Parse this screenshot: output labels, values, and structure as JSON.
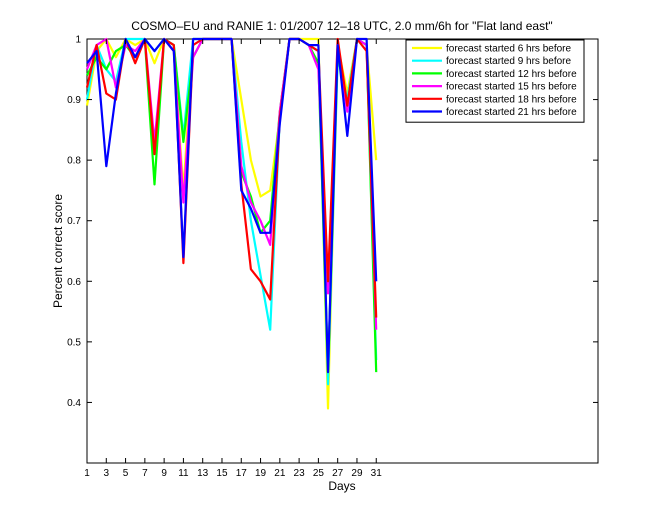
{
  "chart_data": {
    "type": "line",
    "title": "COSMO–EU and RANIE 1: 01/2007 12–18 UTC, 2.0 mm/6h for \"Flat land east\"",
    "xlabel": "Days",
    "ylabel": "Percent correct score",
    "xlim": [
      1,
      54
    ],
    "ylim": [
      0.3,
      1.0
    ],
    "xticks": [
      1,
      3,
      5,
      7,
      9,
      11,
      13,
      15,
      17,
      19,
      21,
      23,
      25,
      27,
      29,
      31
    ],
    "yticks": [
      0.4,
      0.5,
      0.6,
      0.7,
      0.8,
      0.9,
      1.0
    ],
    "ytick_labels": [
      "0.4",
      "0.5",
      "0.6",
      "0.7",
      "0.8",
      "0.9",
      "1"
    ],
    "legend_position": "top-right",
    "x": [
      1,
      2,
      3,
      4,
      5,
      6,
      7,
      8,
      9,
      10,
      11,
      12,
      13,
      14,
      15,
      16,
      17,
      18,
      19,
      20,
      21,
      22,
      23,
      24,
      25,
      26,
      27,
      28,
      29,
      30,
      31
    ],
    "series": [
      {
        "name": "forecast started 6 hrs before",
        "color": "#ffff00",
        "values": [
          0.89,
          0.98,
          1.0,
          0.97,
          1.0,
          0.99,
          1.0,
          0.96,
          1.0,
          0.98,
          0.75,
          1.0,
          1.0,
          1.0,
          1.0,
          1.0,
          0.9,
          0.8,
          0.74,
          0.75,
          0.87,
          1.0,
          1.0,
          1.0,
          1.0,
          0.39,
          0.99,
          0.91,
          1.0,
          0.99,
          0.8
        ]
      },
      {
        "name": "forecast started 9 hrs before",
        "color": "#00ffff",
        "values": [
          0.9,
          0.99,
          0.95,
          0.93,
          1.0,
          1.0,
          1.0,
          0.98,
          1.0,
          0.99,
          0.84,
          1.0,
          1.0,
          1.0,
          1.0,
          1.0,
          0.83,
          0.7,
          0.61,
          0.52,
          0.87,
          1.0,
          1.0,
          0.99,
          0.98,
          0.43,
          0.97,
          0.9,
          1.0,
          0.99,
          0.47
        ]
      },
      {
        "name": "forecast started 12 hrs before",
        "color": "#00ff00",
        "values": [
          0.94,
          0.97,
          0.95,
          0.98,
          0.99,
          0.97,
          1.0,
          0.76,
          1.0,
          0.99,
          0.83,
          0.97,
          1.0,
          1.0,
          1.0,
          1.0,
          0.78,
          0.74,
          0.68,
          0.7,
          0.88,
          1.0,
          1.0,
          0.99,
          0.96,
          0.45,
          0.98,
          0.89,
          1.0,
          0.99,
          0.45
        ]
      },
      {
        "name": "forecast started 15 hrs before",
        "color": "#ff00ff",
        "values": [
          0.95,
          0.99,
          1.0,
          0.92,
          0.99,
          0.98,
          1.0,
          0.83,
          1.0,
          0.98,
          0.73,
          0.97,
          1.0,
          1.0,
          1.0,
          1.0,
          0.79,
          0.73,
          0.7,
          0.66,
          0.88,
          1.0,
          1.0,
          0.99,
          0.95,
          0.58,
          0.99,
          0.88,
          1.0,
          0.99,
          0.52
        ]
      },
      {
        "name": "forecast started 18 hrs before",
        "color": "#ff0000",
        "values": [
          0.92,
          0.99,
          0.91,
          0.9,
          1.0,
          0.96,
          1.0,
          0.81,
          1.0,
          0.99,
          0.63,
          0.99,
          1.0,
          1.0,
          1.0,
          1.0,
          0.76,
          0.62,
          0.6,
          0.57,
          0.87,
          1.0,
          1.0,
          0.99,
          0.98,
          0.6,
          1.0,
          0.89,
          1.0,
          0.98,
          0.54
        ]
      },
      {
        "name": "forecast started 21 hrs before",
        "color": "#0000ff",
        "values": [
          0.96,
          0.98,
          0.79,
          0.91,
          1.0,
          0.97,
          1.0,
          0.98,
          1.0,
          0.98,
          0.64,
          1.0,
          1.0,
          1.0,
          1.0,
          1.0,
          0.75,
          0.72,
          0.68,
          0.68,
          0.86,
          1.0,
          1.0,
          0.99,
          0.99,
          0.45,
          0.99,
          0.84,
          1.0,
          1.0,
          0.6
        ]
      }
    ]
  }
}
